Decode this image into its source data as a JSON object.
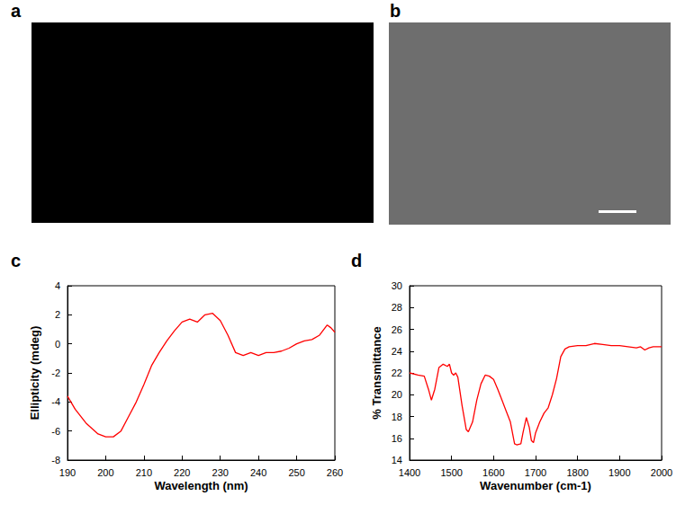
{
  "image_panels": [
    "a",
    "b"
  ],
  "chart_data": [
    {
      "type": "line",
      "title": "c",
      "xlabel": "Wavelength (nm)",
      "ylabel": "Ellipticity (mdeg)",
      "color": "#ff0000",
      "grid": false,
      "x": [
        190,
        192,
        195,
        198,
        200,
        202,
        204,
        206,
        208,
        210,
        212,
        214,
        216,
        218,
        220,
        222,
        224,
        226,
        228,
        230,
        232,
        234,
        236,
        238,
        240,
        242,
        244,
        246,
        248,
        250,
        252,
        254,
        256,
        258,
        259,
        260
      ],
      "values": [
        -3.6,
        -4.5,
        -5.5,
        -6.2,
        -6.4,
        -6.4,
        -6.0,
        -5.0,
        -4.0,
        -2.8,
        -1.5,
        -0.6,
        0.2,
        0.9,
        1.5,
        1.7,
        1.5,
        2.0,
        2.1,
        1.6,
        0.6,
        -0.6,
        -0.8,
        -0.6,
        -0.8,
        -0.6,
        -0.6,
        -0.5,
        -0.3,
        0.0,
        0.2,
        0.3,
        0.6,
        1.3,
        1.1,
        0.8
      ],
      "xlim": [
        190,
        260
      ],
      "xticks": [
        190,
        200,
        210,
        220,
        230,
        240,
        250,
        260
      ],
      "ylim": [
        -8,
        4
      ],
      "yticks": [
        -8,
        -6,
        -4,
        -2,
        0,
        2,
        4
      ]
    },
    {
      "type": "line",
      "title": "d",
      "xlabel": "Wavenumber (cm-1)",
      "ylabel": "% Transmittance",
      "color": "#ff0000",
      "grid": false,
      "x": [
        1400,
        1420,
        1435,
        1445,
        1452,
        1460,
        1470,
        1480,
        1490,
        1495,
        1500,
        1505,
        1510,
        1515,
        1525,
        1535,
        1540,
        1550,
        1560,
        1570,
        1580,
        1590,
        1600,
        1610,
        1620,
        1630,
        1640,
        1650,
        1655,
        1665,
        1670,
        1678,
        1685,
        1690,
        1695,
        1700,
        1710,
        1720,
        1730,
        1740,
        1750,
        1760,
        1770,
        1780,
        1800,
        1820,
        1840,
        1860,
        1880,
        1900,
        1920,
        1940,
        1950,
        1960,
        1970,
        1980,
        2000
      ],
      "values": [
        22.0,
        21.8,
        21.7,
        20.5,
        19.5,
        20.5,
        22.5,
        22.8,
        22.6,
        22.8,
        22.0,
        21.8,
        22.0,
        21.6,
        19.0,
        16.8,
        16.6,
        17.5,
        19.5,
        21.0,
        21.8,
        21.7,
        21.4,
        20.5,
        19.5,
        18.5,
        17.5,
        15.5,
        15.4,
        15.5,
        16.5,
        17.9,
        17.0,
        15.8,
        15.6,
        16.5,
        17.5,
        18.3,
        18.8,
        20.0,
        21.5,
        23.5,
        24.2,
        24.4,
        24.5,
        24.5,
        24.7,
        24.6,
        24.5,
        24.5,
        24.4,
        24.3,
        24.4,
        24.1,
        24.3,
        24.4,
        24.4
      ],
      "xlim": [
        1400,
        2000
      ],
      "xticks": [
        1400,
        1500,
        1600,
        1700,
        1800,
        1900,
        2000
      ],
      "ylim": [
        14,
        30
      ],
      "yticks": [
        14,
        16,
        18,
        20,
        22,
        24,
        26,
        28,
        30
      ]
    }
  ]
}
